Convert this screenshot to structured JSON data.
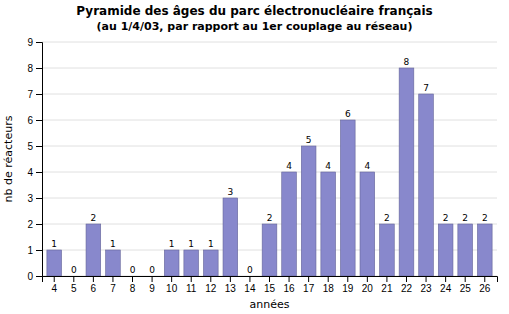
{
  "chart_data": {
    "type": "bar",
    "title": "Pyramide des âges du parc électronucléaire français",
    "subtitle": "(au 1/4/03, par rapport au 1er couplage au réseau)",
    "xlabel": "années",
    "ylabel": "nb de réacteurs",
    "categories": [
      4,
      5,
      6,
      7,
      8,
      9,
      10,
      11,
      12,
      13,
      14,
      15,
      16,
      17,
      18,
      19,
      20,
      21,
      22,
      23,
      24,
      25,
      26
    ],
    "values": [
      1,
      0,
      2,
      1,
      0,
      0,
      1,
      1,
      1,
      3,
      0,
      2,
      4,
      5,
      4,
      6,
      4,
      2,
      8,
      7,
      2,
      2,
      2
    ],
    "color": "#8888cc",
    "ylim": [
      0,
      9
    ],
    "yticks": [
      0,
      1,
      2,
      3,
      4,
      5,
      6,
      7,
      8,
      9
    ],
    "grid": true,
    "data_labels": true
  }
}
